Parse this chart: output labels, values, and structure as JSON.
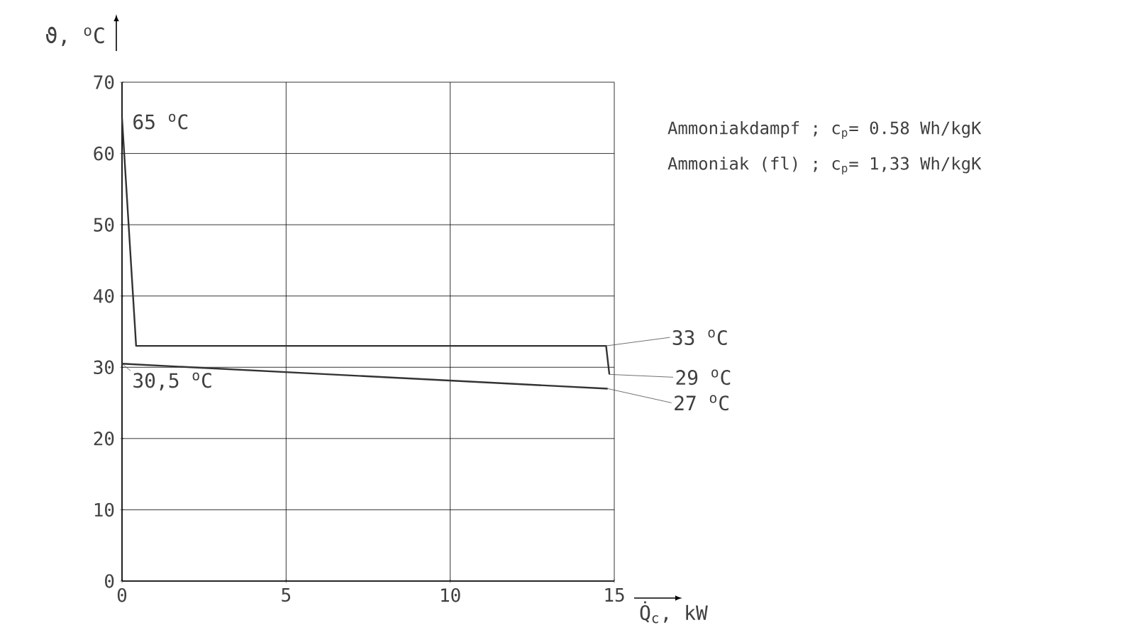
{
  "chart_data": {
    "type": "line",
    "xlabel": "Q̇$_{c}$, kW",
    "ylabel": "ϑ, $^{o}$C",
    "series": [
      {
        "color": "#333333",
        "x": [
          0,
          0.43,
          14.75,
          14.85
        ],
        "values": [
          65,
          33,
          33,
          29
        ]
      },
      {
        "color": "#333333",
        "x": [
          0,
          14.8
        ],
        "values": [
          30.5,
          27
        ]
      }
    ],
    "xlim": [
      0,
      15
    ],
    "xticks": [
      0,
      5,
      10,
      15
    ],
    "ylim": [
      0,
      70
    ],
    "yticks": [
      0,
      10,
      20,
      30,
      40,
      50,
      60,
      70
    ],
    "grid": true,
    "marker": "none",
    "line_style": "solid",
    "annotations": [
      {
        "text": "65 $^{o}$C",
        "x": 0,
        "y": 65
      },
      {
        "text": "30,5 $^{o}$C",
        "x": 0,
        "y": 30.5
      },
      {
        "text": "33 $^{o}$C",
        "x": 14.75,
        "y": 33
      },
      {
        "text": "29 $^{o}$C",
        "x": 14.85,
        "y": 29
      },
      {
        "text": "27 $^{o}$C",
        "x": 14.8,
        "y": 27
      },
      "Ammoniakdampf ; c$_{p}$= 0.58 Wh/kgK",
      "Ammoniak (fl) ; c$_{p}$= 1,33 Wh/kgK"
    ]
  }
}
